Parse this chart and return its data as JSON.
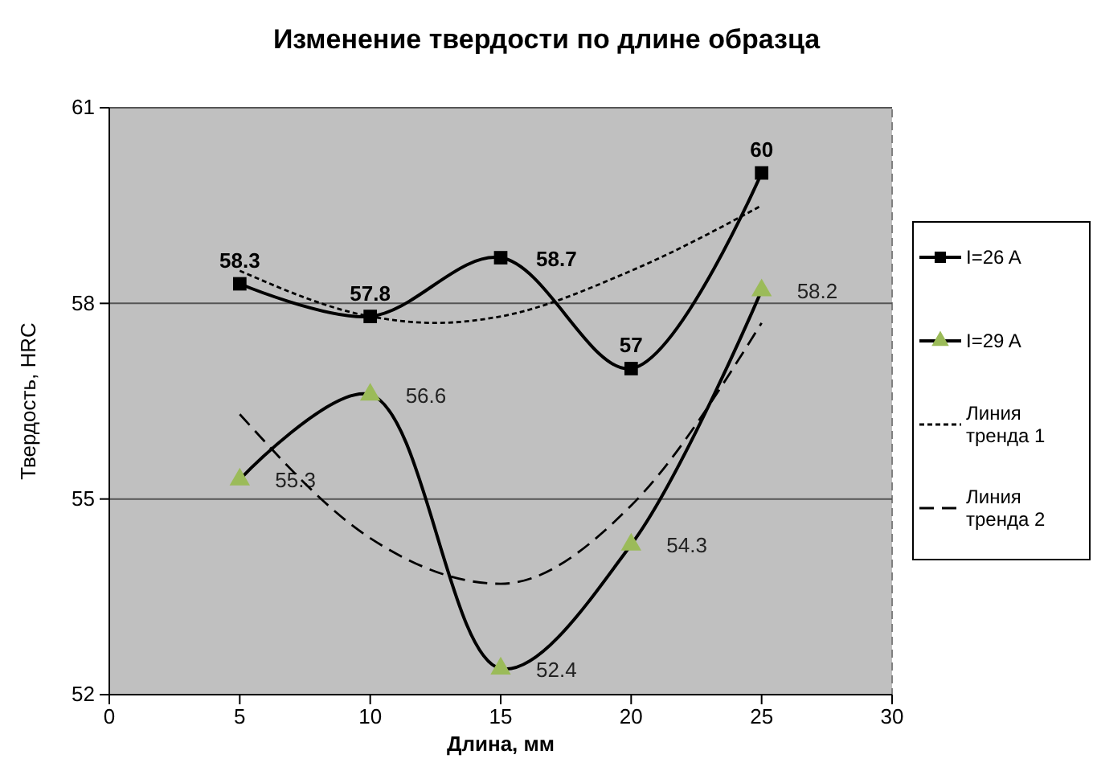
{
  "chart_data": {
    "type": "line",
    "title": "Изменение твердости по длине образца",
    "xlabel": "Длина, мм",
    "ylabel": "Твердость, HRC",
    "x": [
      5,
      10,
      15,
      20,
      25
    ],
    "xlim": [
      0,
      30
    ],
    "xticks": [
      0,
      5,
      10,
      15,
      20,
      25,
      30
    ],
    "ylim": [
      52,
      61
    ],
    "yticks": [
      52,
      55,
      58,
      61
    ],
    "grid": "y",
    "legend": "right",
    "series": [
      {
        "name": "I=26 A",
        "color": "#000000",
        "marker": "square",
        "values": [
          58.3,
          57.8,
          58.7,
          57,
          60
        ],
        "value_labels": [
          "58.3",
          "57.8",
          "58.7",
          "57",
          "60"
        ]
      },
      {
        "name": "I=29 A",
        "color": "#9bbb59",
        "marker": "triangle",
        "values": [
          55.3,
          56.6,
          52.4,
          54.3,
          58.2
        ],
        "value_labels": [
          "55.3",
          "56.6",
          "52.4",
          "54.3",
          "58.2"
        ]
      },
      {
        "name": "Линия тренда 1",
        "type": "line",
        "color": "#000000",
        "marker": "none",
        "line_style": "dotted",
        "x": [
          5,
          10,
          12.5,
          15,
          20,
          25
        ],
        "values": [
          58.5,
          57.8,
          57.7,
          57.8,
          58.5,
          59.5
        ]
      },
      {
        "name": "Линия тренда 2",
        "type": "line",
        "color": "#000000",
        "marker": "none",
        "line_style": "dashed",
        "x": [
          5,
          10,
          15,
          20,
          25
        ],
        "values": [
          56.3,
          54.4,
          53.7,
          54.9,
          57.7
        ]
      }
    ]
  }
}
